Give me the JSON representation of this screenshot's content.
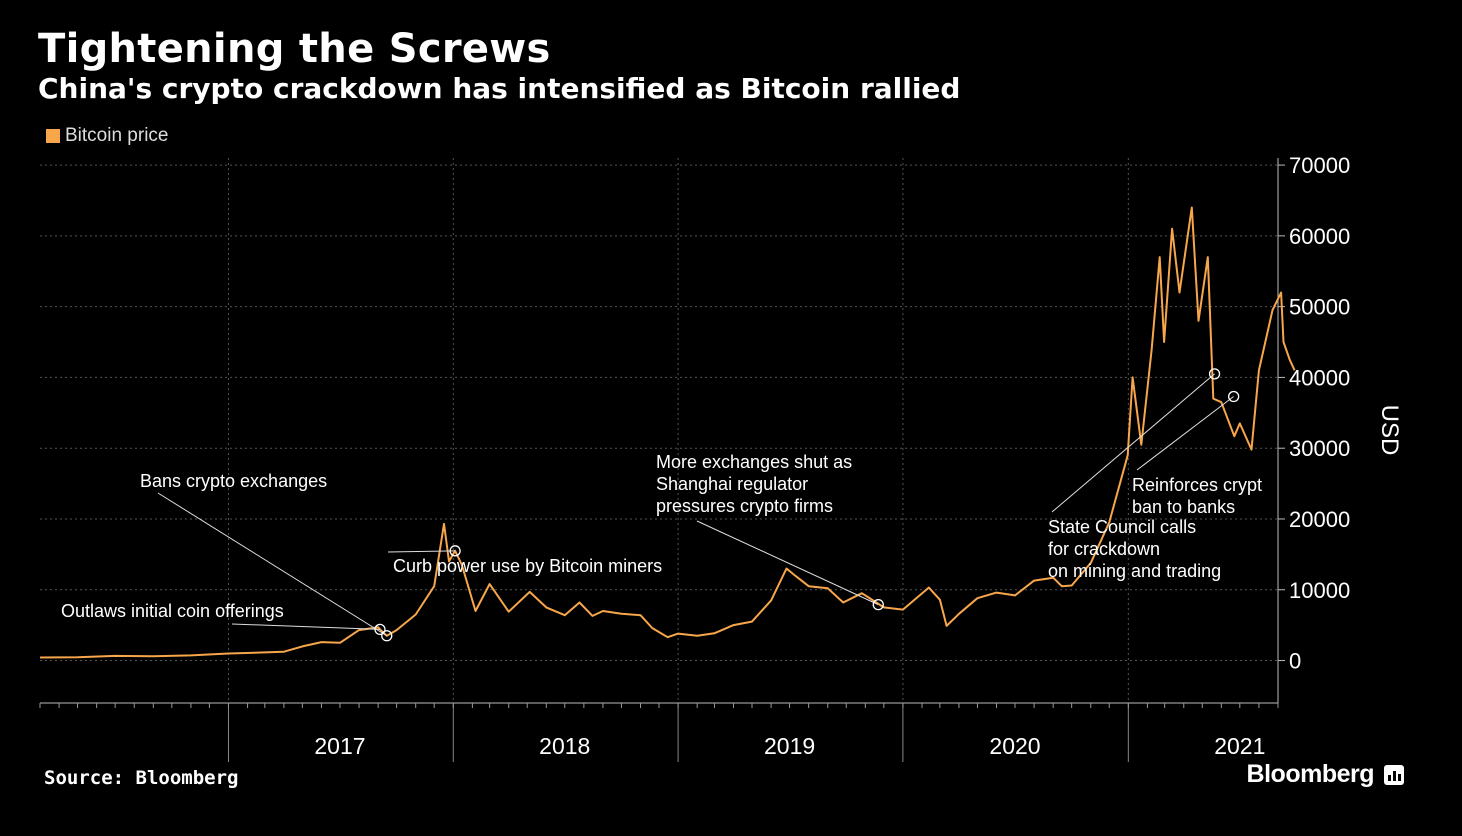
{
  "header": {
    "title": "Tightening the Screws",
    "subtitle": "China's crypto crackdown has intensified as Bitcoin rallied"
  },
  "footer": {
    "source": "Source: Bloomberg",
    "brand": "Bloomberg"
  },
  "colors": {
    "background": "#000000",
    "series": "#f7a64b",
    "grid": "#555555",
    "text": "#ffffff"
  },
  "chart_data": {
    "type": "line",
    "title": "Tightening the Screws",
    "subtitle": "China's crypto crackdown has intensified as Bitcoin rallied",
    "ylabel": "USD",
    "xlabel": "",
    "ylim": [
      -6000,
      71000
    ],
    "xlim": [
      "2016-03-01",
      "2021-09-01"
    ],
    "yticks": [
      0,
      10000,
      20000,
      30000,
      40000,
      50000,
      60000,
      70000
    ],
    "year_labels": [
      {
        "label": "2017",
        "date": "2017-07-01"
      },
      {
        "label": "2018",
        "date": "2018-07-01"
      },
      {
        "label": "2019",
        "date": "2019-07-01"
      },
      {
        "label": "2020",
        "date": "2020-07-01"
      },
      {
        "label": "2021",
        "date": "2021-07-01"
      }
    ],
    "legend": {
      "position": "top-left",
      "entries": [
        "Bitcoin price"
      ]
    },
    "grid": true,
    "series": [
      {
        "name": "Bitcoin price",
        "color": "#f7a64b",
        "points": [
          [
            "2016-03-01",
            430
          ],
          [
            "2016-05-01",
            450
          ],
          [
            "2016-07-01",
            650
          ],
          [
            "2016-09-01",
            610
          ],
          [
            "2016-11-01",
            720
          ],
          [
            "2017-01-01",
            1000
          ],
          [
            "2017-03-01",
            1150
          ],
          [
            "2017-04-01",
            1250
          ],
          [
            "2017-05-01",
            2000
          ],
          [
            "2017-06-01",
            2600
          ],
          [
            "2017-07-01",
            2500
          ],
          [
            "2017-08-01",
            4300
          ],
          [
            "2017-09-01",
            4700
          ],
          [
            "2017-09-04",
            4400
          ],
          [
            "2017-09-15",
            3500
          ],
          [
            "2017-10-01",
            4300
          ],
          [
            "2017-11-01",
            6500
          ],
          [
            "2017-12-01",
            10500
          ],
          [
            "2017-12-17",
            19300
          ],
          [
            "2017-12-25",
            14000
          ],
          [
            "2018-01-04",
            15500
          ],
          [
            "2018-01-15",
            13500
          ],
          [
            "2018-02-06",
            7000
          ],
          [
            "2018-03-01",
            10800
          ],
          [
            "2018-04-01",
            6900
          ],
          [
            "2018-05-05",
            9700
          ],
          [
            "2018-06-01",
            7500
          ],
          [
            "2018-07-01",
            6400
          ],
          [
            "2018-07-25",
            8200
          ],
          [
            "2018-08-15",
            6300
          ],
          [
            "2018-09-01",
            7000
          ],
          [
            "2018-10-01",
            6600
          ],
          [
            "2018-11-01",
            6400
          ],
          [
            "2018-11-20",
            4600
          ],
          [
            "2018-12-15",
            3300
          ],
          [
            "2019-01-01",
            3800
          ],
          [
            "2019-02-01",
            3500
          ],
          [
            "2019-03-01",
            3850
          ],
          [
            "2019-04-01",
            5000
          ],
          [
            "2019-05-01",
            5500
          ],
          [
            "2019-06-01",
            8500
          ],
          [
            "2019-06-26",
            13000
          ],
          [
            "2019-07-10",
            12000
          ],
          [
            "2019-08-01",
            10500
          ],
          [
            "2019-09-01",
            10200
          ],
          [
            "2019-09-26",
            8200
          ],
          [
            "2019-10-26",
            9500
          ],
          [
            "2019-11-01",
            9200
          ],
          [
            "2019-12-01",
            7500
          ],
          [
            "2020-01-01",
            7200
          ],
          [
            "2020-02-12",
            10300
          ],
          [
            "2020-03-01",
            8600
          ],
          [
            "2020-03-12",
            4900
          ],
          [
            "2020-04-01",
            6600
          ],
          [
            "2020-05-01",
            8800
          ],
          [
            "2020-06-01",
            9600
          ],
          [
            "2020-07-01",
            9200
          ],
          [
            "2020-08-01",
            11300
          ],
          [
            "2020-09-01",
            11700
          ],
          [
            "2020-09-15",
            10500
          ],
          [
            "2020-10-01",
            10600
          ],
          [
            "2020-11-01",
            13800
          ],
          [
            "2020-12-01",
            19500
          ],
          [
            "2020-12-31",
            29000
          ],
          [
            "2021-01-08",
            40000
          ],
          [
            "2021-01-22",
            30500
          ],
          [
            "2021-02-08",
            44000
          ],
          [
            "2021-02-21",
            57000
          ],
          [
            "2021-02-28",
            45000
          ],
          [
            "2021-03-13",
            61000
          ],
          [
            "2021-03-25",
            52000
          ],
          [
            "2021-04-14",
            64000
          ],
          [
            "2021-04-25",
            48000
          ],
          [
            "2021-05-10",
            57000
          ],
          [
            "2021-05-19",
            37000
          ],
          [
            "2021-06-01",
            36500
          ],
          [
            "2021-06-22",
            31700
          ],
          [
            "2021-07-01",
            33500
          ],
          [
            "2021-07-20",
            29800
          ],
          [
            "2021-08-01",
            41000
          ],
          [
            "2021-08-23",
            49500
          ],
          [
            "2021-09-06",
            52000
          ],
          [
            "2021-09-10",
            45000
          ],
          [
            "2021-09-20",
            42500
          ],
          [
            "2021-09-28",
            41000
          ]
        ]
      }
    ],
    "annotations": [
      {
        "text": [
          "Bans crypto exchanges"
        ],
        "date": "2017-09-15",
        "value": 3500
      },
      {
        "text": [
          "Outlaws initial coin offerings"
        ],
        "date": "2017-09-04",
        "value": 4400
      },
      {
        "text": [
          "Curb power use by Bitcoin miners"
        ],
        "date": "2018-01-04",
        "value": 15500
      },
      {
        "text": [
          "More exchanges shut as",
          "Shanghai regulator",
          "pressures crypto firms"
        ],
        "date": "2019-11-22",
        "value": 7900
      },
      {
        "text": [
          "State Council calls",
          "for crackdown",
          "on mining and trading"
        ],
        "date": "2021-05-21",
        "value": 40500
      },
      {
        "text": [
          "Reinforces crypt",
          "ban to banks"
        ],
        "date": "2021-06-21",
        "value": 37300
      }
    ]
  }
}
